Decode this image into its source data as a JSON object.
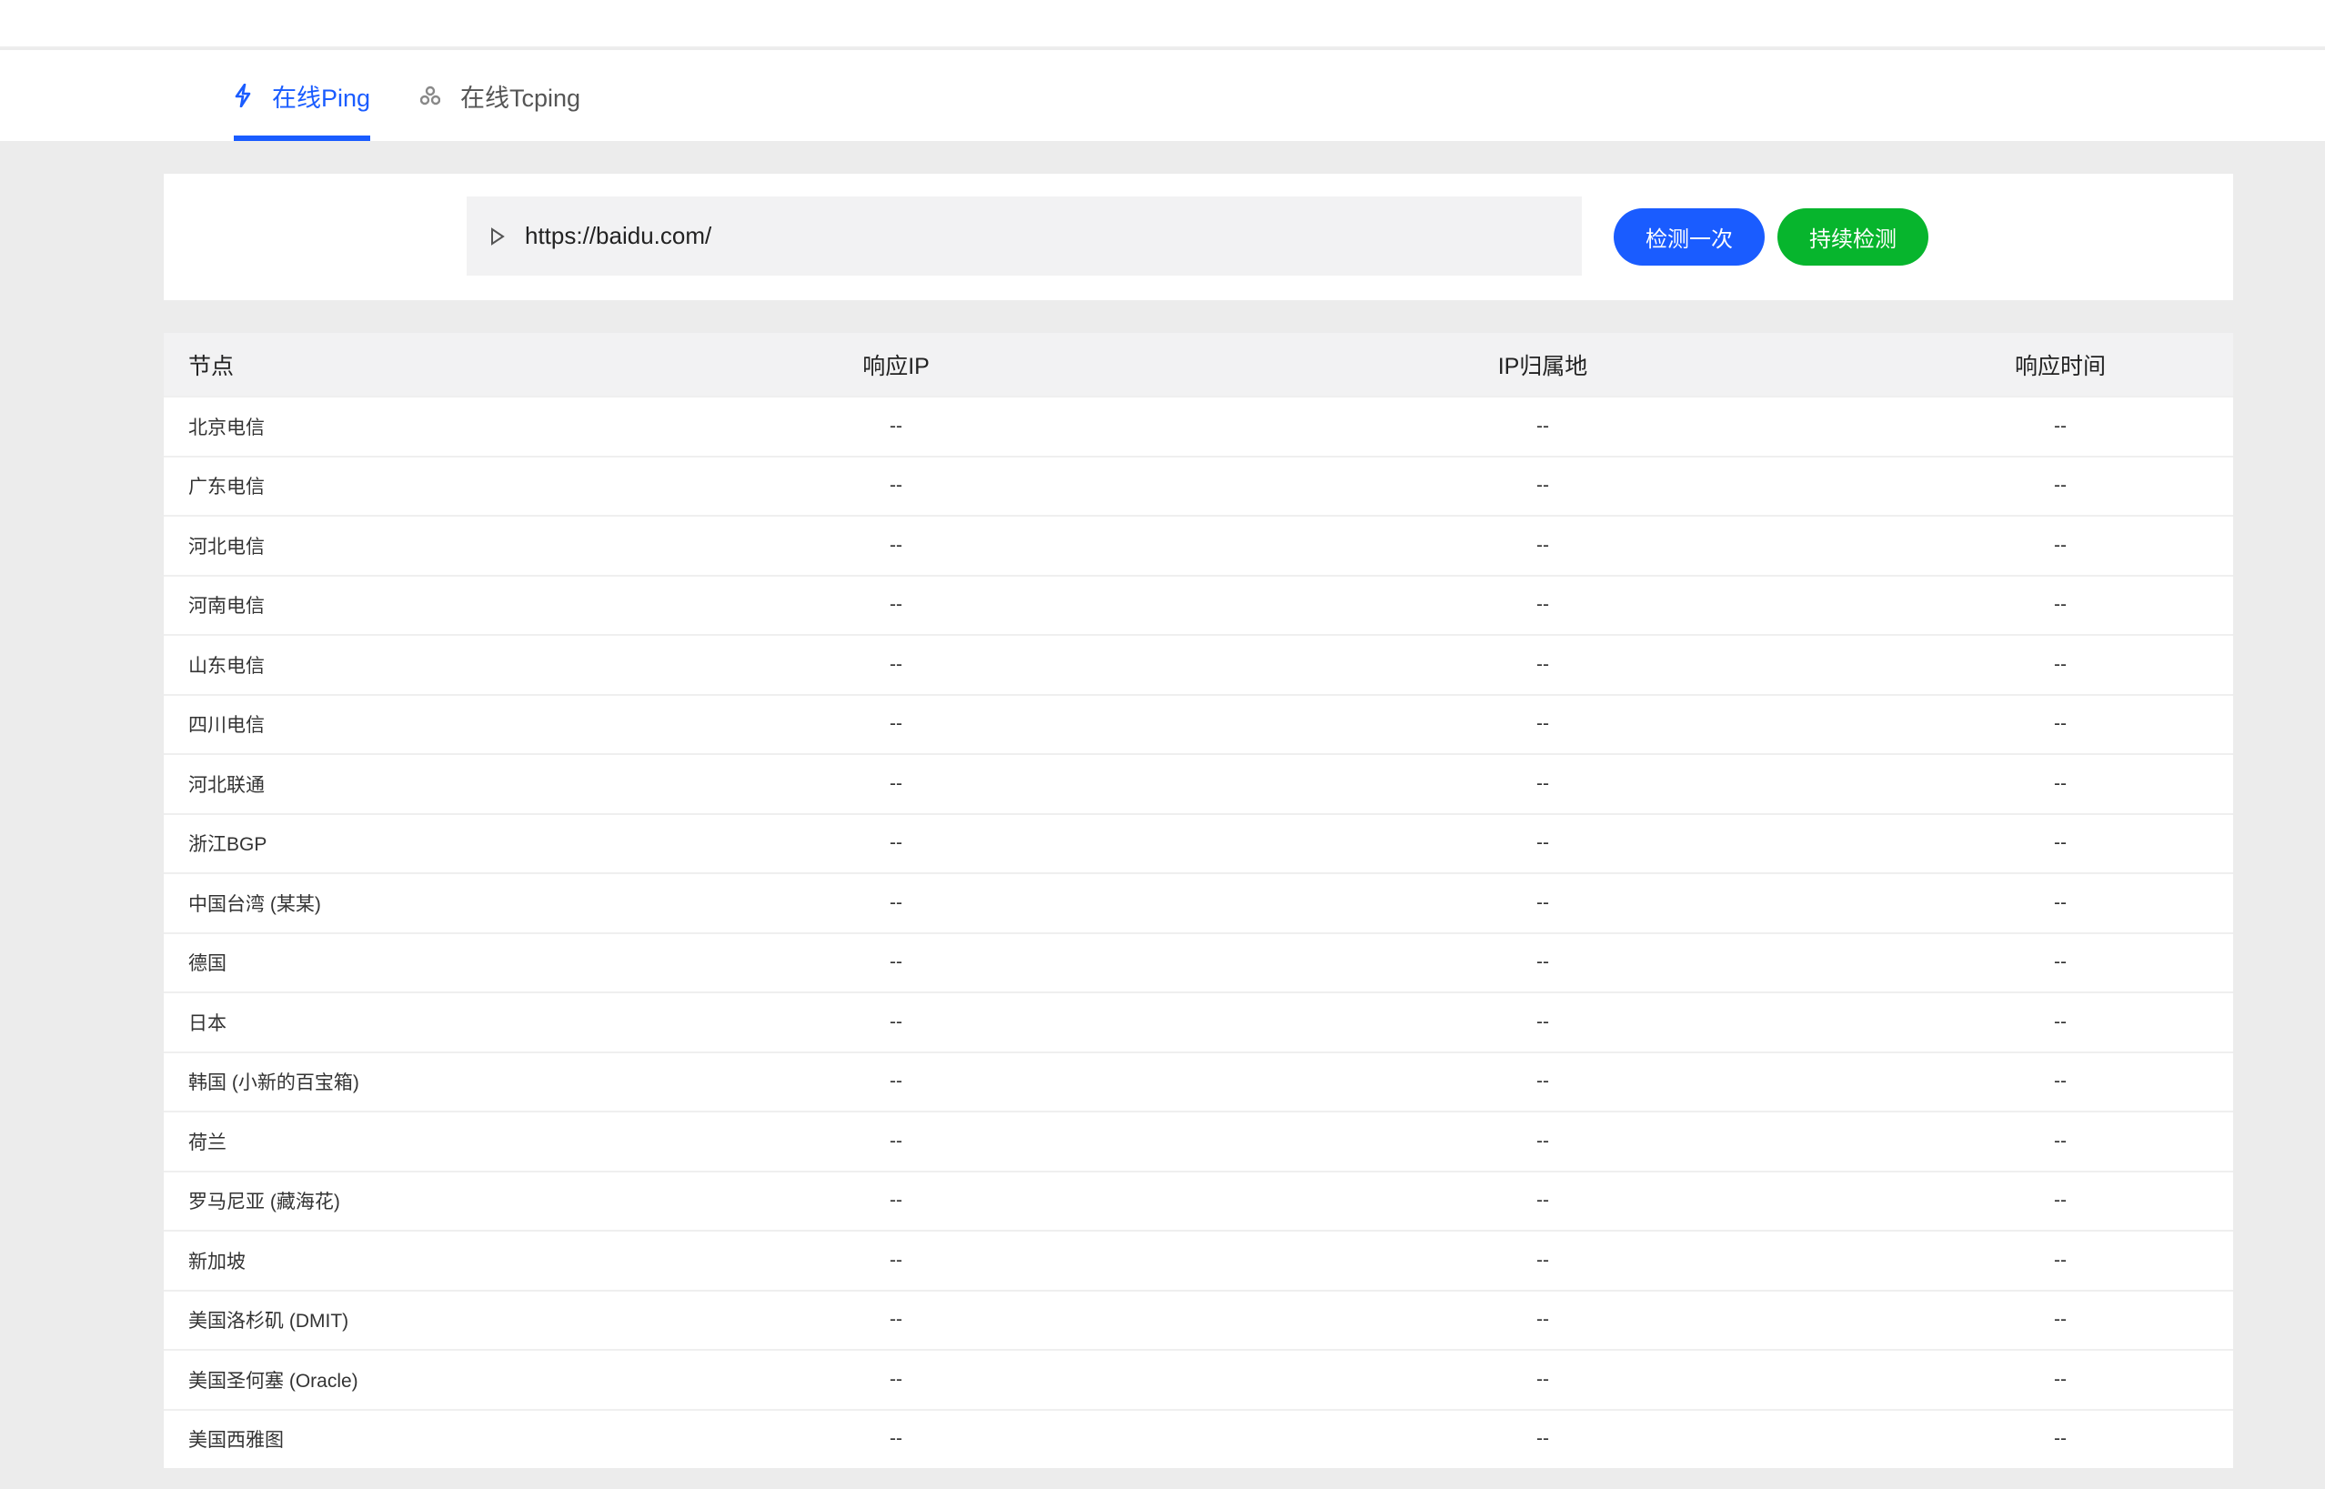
{
  "tabs": [
    {
      "label": "在线Ping",
      "icon": "lightning-icon",
      "active": true
    },
    {
      "label": "在线Tcping",
      "icon": "nodes-icon",
      "active": false
    }
  ],
  "search": {
    "value": "https://baidu.com/",
    "icon": "play-icon"
  },
  "buttons": {
    "once": "检测一次",
    "continuous": "持续检测"
  },
  "colors": {
    "accent": "#1a5cff",
    "green": "#07b52d"
  },
  "table": {
    "headers": [
      "节点",
      "响应IP",
      "IP归属地",
      "响应时间"
    ],
    "rows": [
      [
        "北京电信",
        "--",
        "--",
        "--"
      ],
      [
        "广东电信",
        "--",
        "--",
        "--"
      ],
      [
        "河北电信",
        "--",
        "--",
        "--"
      ],
      [
        "河南电信",
        "--",
        "--",
        "--"
      ],
      [
        "山东电信",
        "--",
        "--",
        "--"
      ],
      [
        "四川电信",
        "--",
        "--",
        "--"
      ],
      [
        "河北联通",
        "--",
        "--",
        "--"
      ],
      [
        "浙江BGP",
        "--",
        "--",
        "--"
      ],
      [
        "中国台湾 (某某)",
        "--",
        "--",
        "--"
      ],
      [
        "德国",
        "--",
        "--",
        "--"
      ],
      [
        "日本",
        "--",
        "--",
        "--"
      ],
      [
        "韩国 (小新的百宝箱)",
        "--",
        "--",
        "--"
      ],
      [
        "荷兰",
        "--",
        "--",
        "--"
      ],
      [
        "罗马尼亚 (藏海花)",
        "--",
        "--",
        "--"
      ],
      [
        "新加坡",
        "--",
        "--",
        "--"
      ],
      [
        "美国洛杉矶 (DMIT)",
        "--",
        "--",
        "--"
      ],
      [
        "美国圣何塞 (Oracle)",
        "--",
        "--",
        "--"
      ],
      [
        "美国西雅图",
        "--",
        "--",
        "--"
      ]
    ]
  }
}
